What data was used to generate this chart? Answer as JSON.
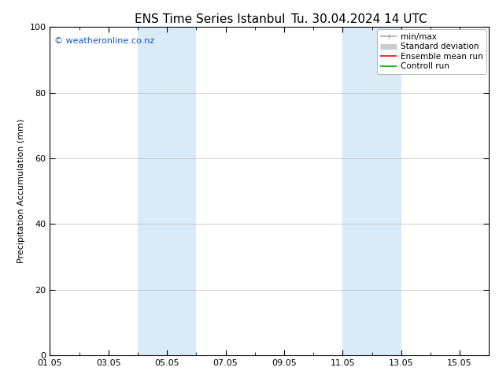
{
  "title": "ENS Time Series Istanbul",
  "subtitle": "Tu. 30.04.2024 14 UTC",
  "ylabel": "Precipitation Accumulation (mm)",
  "ylim": [
    0,
    100
  ],
  "yticks": [
    0,
    20,
    40,
    60,
    80,
    100
  ],
  "watermark": "© weatheronline.co.nz",
  "x_tick_labels": [
    "01.05",
    "03.05",
    "05.05",
    "07.05",
    "09.05",
    "11.05",
    "13.05",
    "15.05"
  ],
  "x_tick_positions": [
    1,
    3,
    5,
    7,
    9,
    11,
    13,
    15
  ],
  "shaded_regions": [
    {
      "xmin": 4.0,
      "xmax": 6.0
    },
    {
      "xmin": 11.0,
      "xmax": 13.0
    }
  ],
  "shaded_color": "#daeaf7",
  "legend_entries": [
    {
      "label": "min/max",
      "color": "#aaaaaa",
      "lw": 1.2
    },
    {
      "label": "Standard deviation",
      "color": "#cccccc",
      "lw": 5
    },
    {
      "label": "Ensemble mean run",
      "color": "#ff0000",
      "lw": 1.2
    },
    {
      "label": "Controll run",
      "color": "#00aa00",
      "lw": 1.2
    }
  ],
  "background_color": "#ffffff",
  "plot_area_color": "#ffffff",
  "grid_color": "#bbbbbb",
  "xlim": [
    1,
    16
  ],
  "title_fontsize": 11,
  "label_fontsize": 8,
  "tick_fontsize": 8,
  "legend_fontsize": 7.5,
  "watermark_color": "#1155cc",
  "watermark_fontsize": 8
}
